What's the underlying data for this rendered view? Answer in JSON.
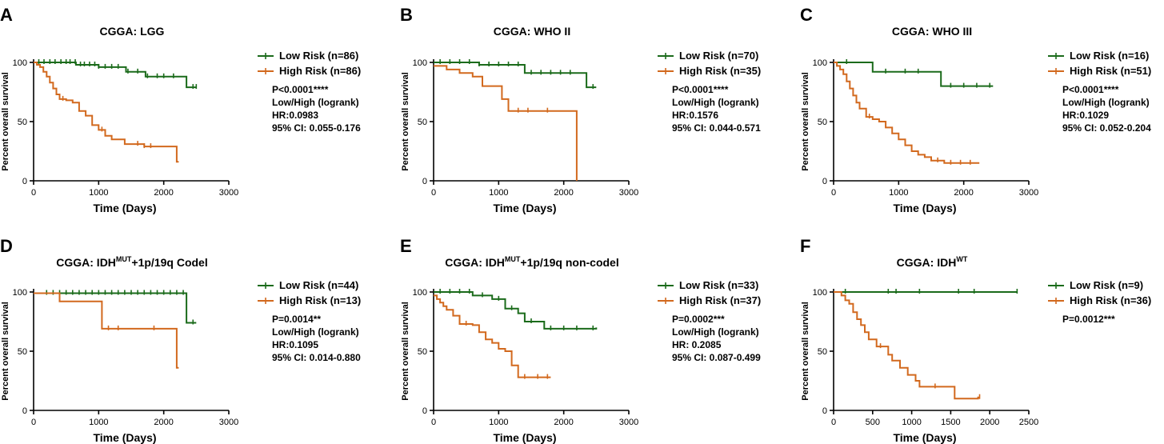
{
  "chart_data": [
    {
      "letter": "A",
      "type": "line",
      "title_parts": [
        {
          "text": "CGGA: LGG",
          "sup": false
        }
      ],
      "xlabel": "Time (Days)",
      "ylabel": "Percent overall survival",
      "xlim": [
        0,
        3000
      ],
      "ylim": [
        0,
        100
      ],
      "xticks": [
        "0",
        "1000",
        "2000",
        "3000"
      ],
      "yticks": [
        "0",
        "50",
        "100"
      ],
      "series": [
        {
          "name": "Low Risk (n=86)",
          "color": "#1b6b1b",
          "x": [
            0,
            650,
            1000,
            1420,
            1720,
            2300,
            2350,
            2500
          ],
          "y": [
            100,
            98,
            96,
            92,
            88,
            88,
            79,
            79
          ],
          "censor_x": [
            80,
            160,
            250,
            330,
            420,
            500,
            560,
            640,
            720,
            780,
            860,
            940,
            1000,
            1100,
            1200,
            1300,
            1450,
            1600,
            1750,
            1900,
            2000,
            2150,
            2450,
            2500
          ]
        },
        {
          "name": "High Risk (n=86)",
          "color": "#d2691e",
          "x": [
            0,
            50,
            100,
            150,
            200,
            250,
            300,
            350,
            400,
            500,
            600,
            700,
            800,
            900,
            1000,
            1100,
            1200,
            1400,
            1700,
            2200,
            2230
          ],
          "y": [
            100,
            98,
            96,
            92,
            88,
            83,
            78,
            73,
            69,
            68,
            66,
            59,
            55,
            47,
            43,
            38,
            35,
            31,
            29,
            16,
            16
          ],
          "censor_x": [
            450,
            1050,
            1600,
            1700,
            1800
          ]
        }
      ],
      "stats": [
        "P<0.0001****",
        "Low/High (logrank)",
        "HR:0.0983",
        "95% CI: 0.055-0.176"
      ]
    },
    {
      "letter": "B",
      "type": "line",
      "title_parts": [
        {
          "text": "CGGA: WHO II",
          "sup": false
        }
      ],
      "xlabel": "Time (Days)",
      "ylabel": "Percent overall survival",
      "xlim": [
        0,
        3000
      ],
      "ylim": [
        0,
        100
      ],
      "xticks": [
        "0",
        "1000",
        "2000",
        "3000"
      ],
      "yticks": [
        "0",
        "50",
        "100"
      ],
      "series": [
        {
          "name": "Low Risk (n=70)",
          "color": "#1b6b1b",
          "x": [
            0,
            700,
            1400,
            2300,
            2350,
            2500
          ],
          "y": [
            100,
            98,
            91,
            91,
            79,
            79
          ],
          "censor_x": [
            100,
            250,
            400,
            550,
            700,
            850,
            1000,
            1150,
            1300,
            1500,
            1650,
            1800,
            1950,
            2100,
            2450
          ]
        },
        {
          "name": "High Risk (n=35)",
          "color": "#d2691e",
          "x": [
            0,
            200,
            400,
            600,
            750,
            1050,
            1150,
            2200,
            2200
          ],
          "y": [
            97,
            94,
            91,
            88,
            80,
            69,
            59,
            59,
            0
          ],
          "censor_x": [
            1300,
            1450,
            1750
          ]
        }
      ],
      "stats": [
        "P<0.0001****",
        "Low/High (logrank)",
        "HR:0.1576",
        "95% CI: 0.044-0.571"
      ]
    },
    {
      "letter": "C",
      "type": "line",
      "title_parts": [
        {
          "text": "CGGA: WHO III",
          "sup": false
        }
      ],
      "xlabel": "Time (Days)",
      "ylabel": "Percent overall survival",
      "xlim": [
        0,
        3000
      ],
      "ylim": [
        0,
        100
      ],
      "xticks": [
        "0",
        "1000",
        "2000",
        "3000"
      ],
      "yticks": [
        "0",
        "50",
        "100"
      ],
      "series": [
        {
          "name": "Low Risk (n=16)",
          "color": "#1b6b1b",
          "x": [
            0,
            600,
            1650,
            2450
          ],
          "y": [
            100,
            92,
            80,
            80
          ],
          "censor_x": [
            200,
            800,
            1100,
            1300,
            1800,
            2000,
            2200,
            2400
          ]
        },
        {
          "name": "High Risk (n=51)",
          "color": "#d2691e",
          "x": [
            0,
            50,
            100,
            150,
            200,
            250,
            300,
            350,
            400,
            500,
            600,
            700,
            800,
            900,
            1000,
            1100,
            1200,
            1300,
            1400,
            1500,
            1700,
            2000,
            2200,
            2240
          ],
          "y": [
            100,
            97,
            94,
            90,
            84,
            78,
            72,
            66,
            61,
            54,
            52,
            50,
            45,
            40,
            35,
            30,
            25,
            22,
            20,
            17,
            15,
            15,
            15,
            15
          ],
          "censor_x": [
            550,
            1600,
            1800,
            1950,
            2100
          ]
        }
      ],
      "stats": [
        "P<0.0001****",
        "Low/High (logrank)",
        "HR:0.1029",
        "95% CI: 0.052-0.204"
      ]
    },
    {
      "letter": "D",
      "type": "line",
      "title_parts": [
        {
          "text": "CGGA: IDH",
          "sup": false
        },
        {
          "text": "MUT",
          "sup": true
        },
        {
          "text": "+1p/19q Codel",
          "sup": false
        }
      ],
      "xlabel": "Time (Days)",
      "ylabel": "Percent overall survival",
      "xlim": [
        0,
        3000
      ],
      "ylim": [
        0,
        100
      ],
      "xticks": [
        "0",
        "1000",
        "2000",
        "3000"
      ],
      "yticks": [
        "0",
        "50",
        "100"
      ],
      "series": [
        {
          "name": "Low Risk (n=44)",
          "color": "#1b6b1b",
          "x": [
            0,
            2330,
            2350,
            2500
          ],
          "y": [
            99,
            99,
            74,
            74
          ],
          "censor_x": [
            200,
            300,
            400,
            500,
            600,
            700,
            800,
            900,
            1000,
            1100,
            1200,
            1300,
            1400,
            1500,
            1600,
            1700,
            1800,
            1900,
            2000,
            2100,
            2200,
            2300,
            2450
          ]
        },
        {
          "name": "High Risk (n=13)",
          "color": "#d2691e",
          "x": [
            0,
            400,
            1000,
            1050,
            2200,
            2230
          ],
          "y": [
            99,
            92,
            92,
            69,
            36,
            36
          ],
          "censor_x": [
            1150,
            1300,
            1850
          ]
        }
      ],
      "stats": [
        "P=0.0014**",
        "Low/High (logrank)",
        "HR:0.1095",
        "95% CI: 0.014-0.880"
      ]
    },
    {
      "letter": "E",
      "type": "line",
      "title_parts": [
        {
          "text": "CGGA: IDH",
          "sup": false
        },
        {
          "text": "MUT",
          "sup": true
        },
        {
          "text": "+1p/19q non-codel",
          "sup": false
        }
      ],
      "xlabel": "Time (Days)",
      "ylabel": "Percent overall survival",
      "xlim": [
        0,
        3000
      ],
      "ylim": [
        0,
        100
      ],
      "xticks": [
        "0",
        "1000",
        "2000",
        "3000"
      ],
      "yticks": [
        "0",
        "50",
        "100"
      ],
      "series": [
        {
          "name": "Low Risk (n=33)",
          "color": "#1b6b1b",
          "x": [
            0,
            600,
            900,
            1100,
            1300,
            1400,
            1700,
            2500
          ],
          "y": [
            100,
            97,
            94,
            86,
            82,
            75,
            69,
            70
          ],
          "censor_x": [
            100,
            250,
            400,
            550,
            750,
            1000,
            1200,
            1500,
            1800,
            2000,
            2200,
            2450
          ]
        },
        {
          "name": "High Risk (n=37)",
          "color": "#d2691e",
          "x": [
            0,
            50,
            100,
            150,
            200,
            300,
            400,
            600,
            700,
            800,
            900,
            1000,
            1100,
            1200,
            1300,
            1500,
            1750,
            1800
          ],
          "y": [
            97,
            94,
            91,
            88,
            85,
            80,
            73,
            72,
            66,
            60,
            57,
            52,
            50,
            38,
            28,
            28,
            28,
            28
          ],
          "censor_x": [
            500,
            1400,
            1600,
            1750
          ]
        }
      ],
      "stats": [
        "P=0.0002***",
        "Low/High (logrank)",
        "HR: 0.2085",
        "95% CI: 0.087-0.499"
      ]
    },
    {
      "letter": "F",
      "type": "line",
      "title_parts": [
        {
          "text": "CGGA: IDH",
          "sup": false
        },
        {
          "text": "WT",
          "sup": true
        }
      ],
      "xlabel": "Time (Days)",
      "ylabel": "Percent overall survival",
      "xlim": [
        0,
        2500
      ],
      "ylim": [
        0,
        100
      ],
      "xticks": [
        "0",
        "500",
        "1000",
        "1500",
        "2000",
        "2500"
      ],
      "yticks": [
        "0",
        "50",
        "100"
      ],
      "series": [
        {
          "name": "Low Risk (n=9)",
          "color": "#1b6b1b",
          "x": [
            0,
            2350
          ],
          "y": [
            100,
            100
          ],
          "censor_x": [
            150,
            700,
            800,
            1100,
            1600,
            1800,
            2350
          ]
        },
        {
          "name": "High Risk (n=36)",
          "color": "#d2691e",
          "x": [
            0,
            100,
            150,
            200,
            250,
            300,
            350,
            400,
            450,
            550,
            650,
            700,
            750,
            850,
            950,
            1050,
            1100,
            1200,
            1550,
            1850,
            1870
          ],
          "y": [
            100,
            97,
            93,
            90,
            83,
            77,
            72,
            66,
            60,
            54,
            54,
            47,
            42,
            36,
            30,
            25,
            20,
            20,
            10,
            11,
            11
          ],
          "censor_x": [
            600,
            1300,
            1870
          ]
        }
      ],
      "stats": [
        "P=0.0012***"
      ]
    }
  ]
}
